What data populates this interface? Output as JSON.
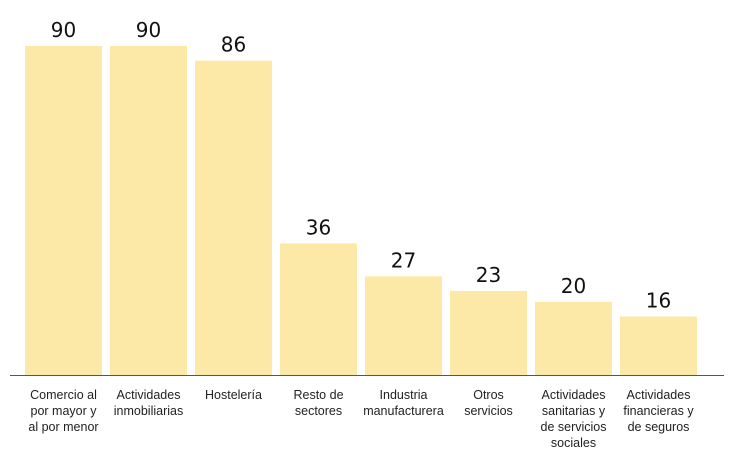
{
  "chart_data": {
    "type": "bar",
    "categories": [
      [
        "Comercio al",
        "por mayor y",
        "al por menor"
      ],
      [
        "Actividades",
        "inmobiliarias"
      ],
      [
        "Hostelería"
      ],
      [
        "Resto de",
        "sectores"
      ],
      [
        "Industria",
        "manufacturera"
      ],
      [
        "Otros",
        "servicios"
      ],
      [
        "Actividades",
        "sanitarias y",
        "de servicios",
        "sociales"
      ],
      [
        "Actividades",
        "financieras y",
        "de seguros"
      ]
    ],
    "values": [
      90,
      90,
      86,
      36,
      27,
      23,
      20,
      16
    ],
    "ylim": [
      0,
      90
    ],
    "grid": false,
    "legend": "none",
    "bar_color": "#fde9a7",
    "axis_color": "#555555",
    "label_color": "#111111"
  }
}
